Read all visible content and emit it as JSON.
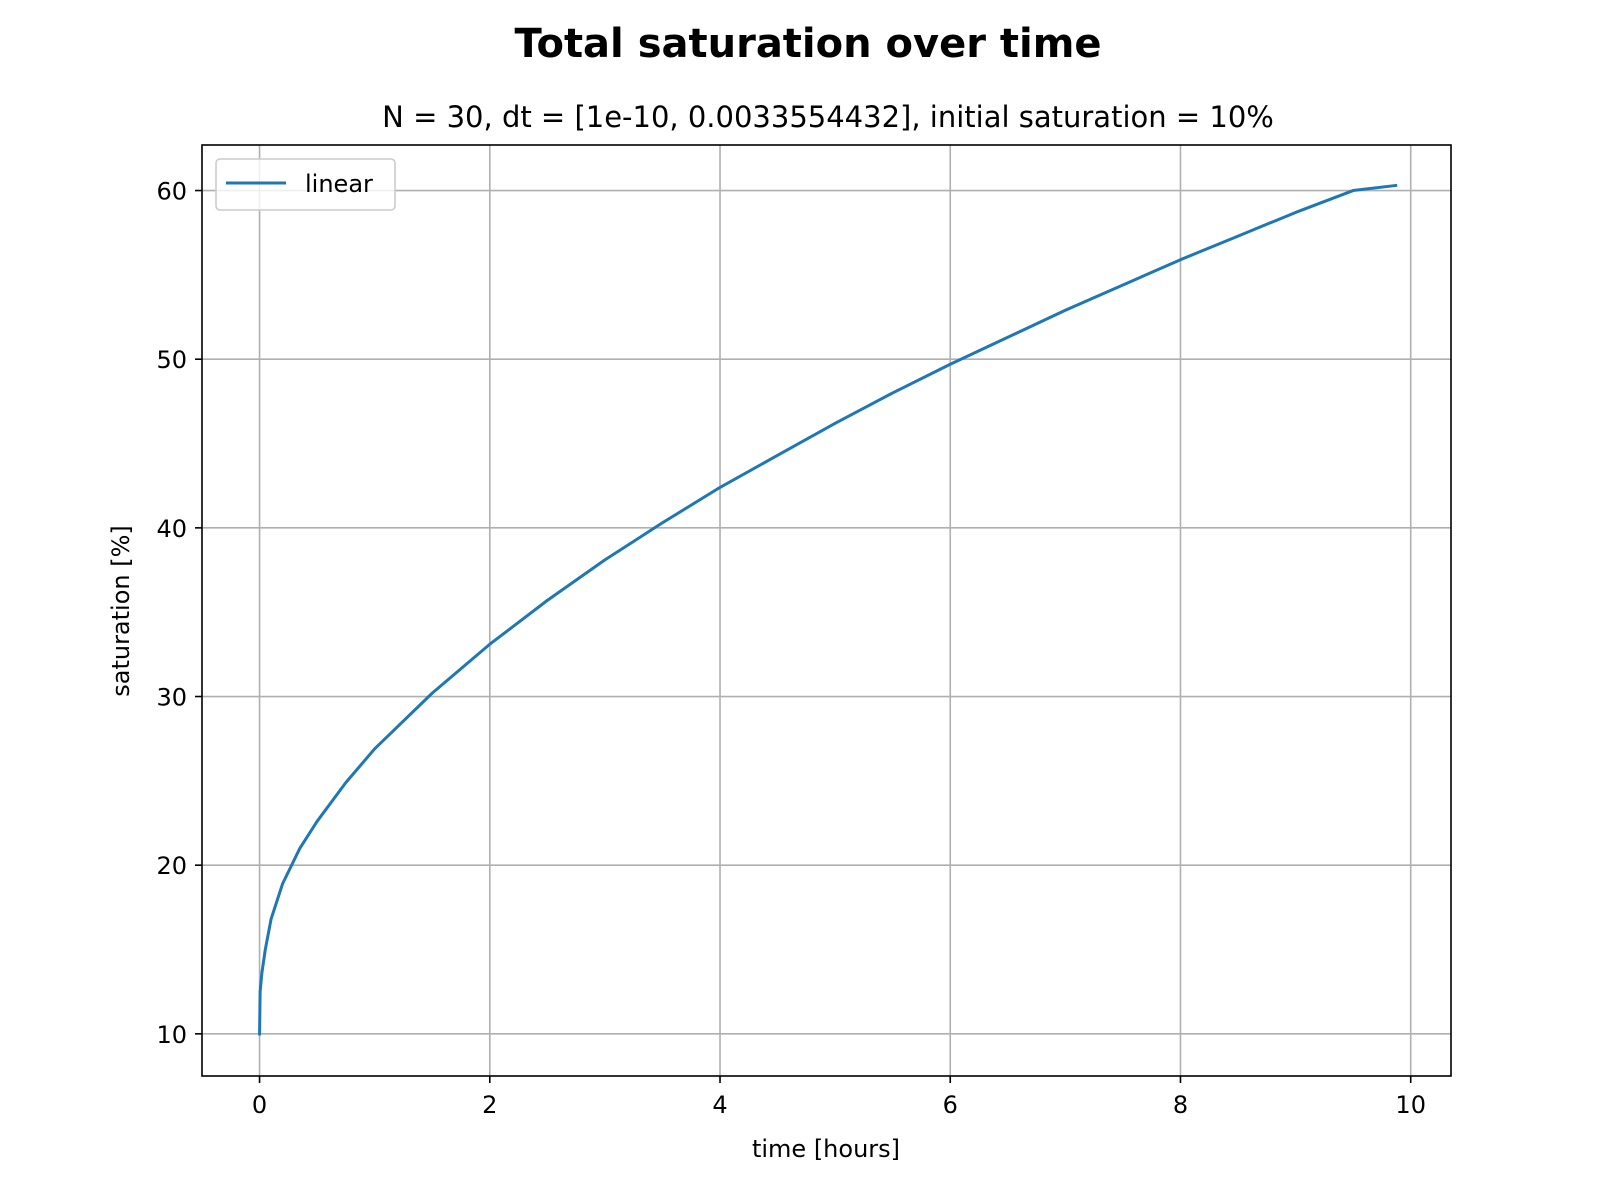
{
  "chart_data": {
    "type": "line",
    "title": "Total saturation over time",
    "subtitle": "N = 30, dt = [1e-10, 0.0033554432], initial saturation = 10%",
    "xlabel": "time [hours]",
    "ylabel": "saturation [%]",
    "xlim": [
      -0.5,
      10.35
    ],
    "ylim": [
      7.5,
      62.7
    ],
    "xticks": [
      0,
      2,
      4,
      6,
      8,
      10
    ],
    "yticks": [
      10,
      20,
      30,
      40,
      50,
      60
    ],
    "xtick_labels": [
      "0",
      "2",
      "4",
      "6",
      "8",
      "10"
    ],
    "ytick_labels": [
      "10",
      "20",
      "30",
      "40",
      "50",
      "60"
    ],
    "grid": true,
    "legend_position": "upper-left",
    "series": [
      {
        "name": "linear",
        "color": "#1f77b4",
        "x": [
          0,
          0.005,
          0.02,
          0.05,
          0.1,
          0.2,
          0.35,
          0.5,
          0.75,
          1.0,
          1.5,
          2.0,
          2.5,
          3.0,
          3.5,
          4.0,
          4.5,
          5.0,
          5.5,
          6.0,
          6.5,
          7.0,
          7.5,
          8.0,
          8.5,
          9.0,
          9.5,
          9.87
        ],
        "y": [
          10,
          12.5,
          13.6,
          15.0,
          16.8,
          18.9,
          21.0,
          22.6,
          24.9,
          26.9,
          30.2,
          33.1,
          35.7,
          38.1,
          40.3,
          42.4,
          44.3,
          46.2,
          48.0,
          49.7,
          51.3,
          52.9,
          54.4,
          55.9,
          57.3,
          58.7,
          60.0,
          60.3
        ]
      }
    ]
  }
}
